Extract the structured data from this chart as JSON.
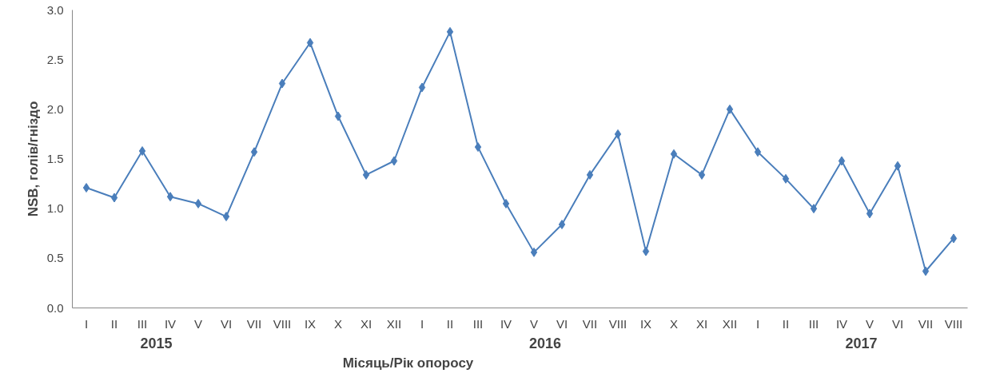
{
  "chart_data": {
    "type": "line",
    "xlabel": "Місяць/Рік опоросу",
    "ylabel": "NSB, голів/гніздо",
    "categories": [
      "I",
      "II",
      "III",
      "IV",
      "V",
      "VI",
      "VII",
      "VIII",
      "IX",
      "X",
      "XI",
      "XII",
      "I",
      "II",
      "III",
      "IV",
      "V",
      "VI",
      "VII",
      "VIII",
      "IX",
      "X",
      "XI",
      "XII",
      "I",
      "II",
      "III",
      "IV",
      "V",
      "VI",
      "VII",
      "VIII"
    ],
    "series": [
      {
        "color": "#4a7ebb",
        "values": [
          1.21,
          1.11,
          1.58,
          1.12,
          1.05,
          0.92,
          1.57,
          2.26,
          2.67,
          1.93,
          1.34,
          1.48,
          2.22,
          2.78,
          1.62,
          1.05,
          0.56,
          0.84,
          1.34,
          1.75,
          0.57,
          1.55,
          1.34,
          2.0,
          1.57,
          1.3,
          1.0,
          1.48,
          0.95,
          1.43,
          0.37,
          0.7
        ]
      }
    ],
    "ylim": [
      0,
      3
    ],
    "yticks": [
      {
        "value": 0,
        "label": "0.0"
      },
      {
        "value": 0.5,
        "label": "0.5"
      },
      {
        "value": 1,
        "label": "1.0"
      },
      {
        "value": 1.5,
        "label": "1.5"
      },
      {
        "value": 2,
        "label": "2.0"
      },
      {
        "value": 2.5,
        "label": "2.5"
      },
      {
        "value": 3,
        "label": "3.0"
      }
    ],
    "annotations": [
      "2015",
      "2016",
      "2017"
    ],
    "grid": false,
    "marker": "diamond",
    "line_style": "solid"
  }
}
